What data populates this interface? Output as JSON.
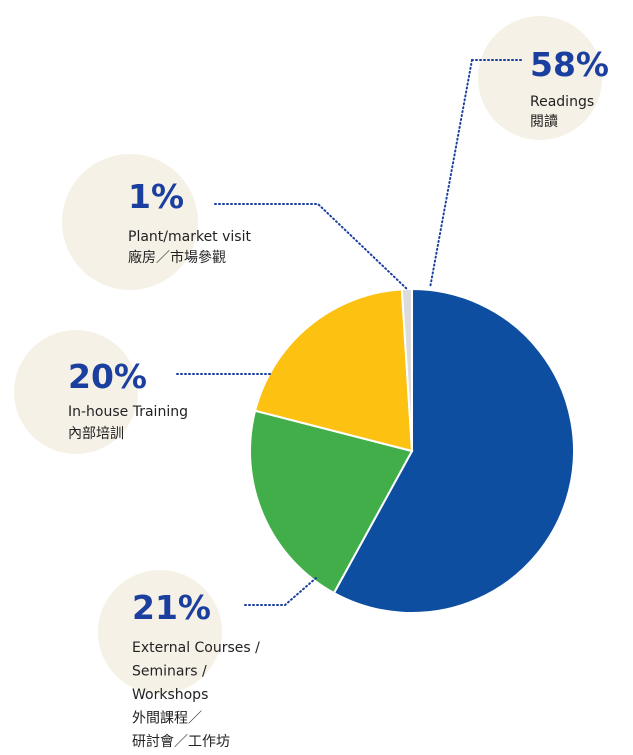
{
  "chart_data": {
    "type": "pie",
    "categories": [
      [
        "Readings",
        "閱讀"
      ],
      [
        "External Courses /",
        "Seminars /",
        "Workshops",
        "外間課程／",
        "研討會／工作坊"
      ],
      [
        "In-house Training",
        "內部培訓"
      ],
      [
        "Plant/market visit",
        "廠房／市場參觀"
      ]
    ],
    "values": [
      58,
      21,
      20,
      1
    ],
    "value_labels": [
      "58%",
      "21%",
      "20%",
      "1%"
    ],
    "colors": [
      "#0d4ea1",
      "#41ae49",
      "#fcc111",
      "#dcdcdc"
    ]
  }
}
